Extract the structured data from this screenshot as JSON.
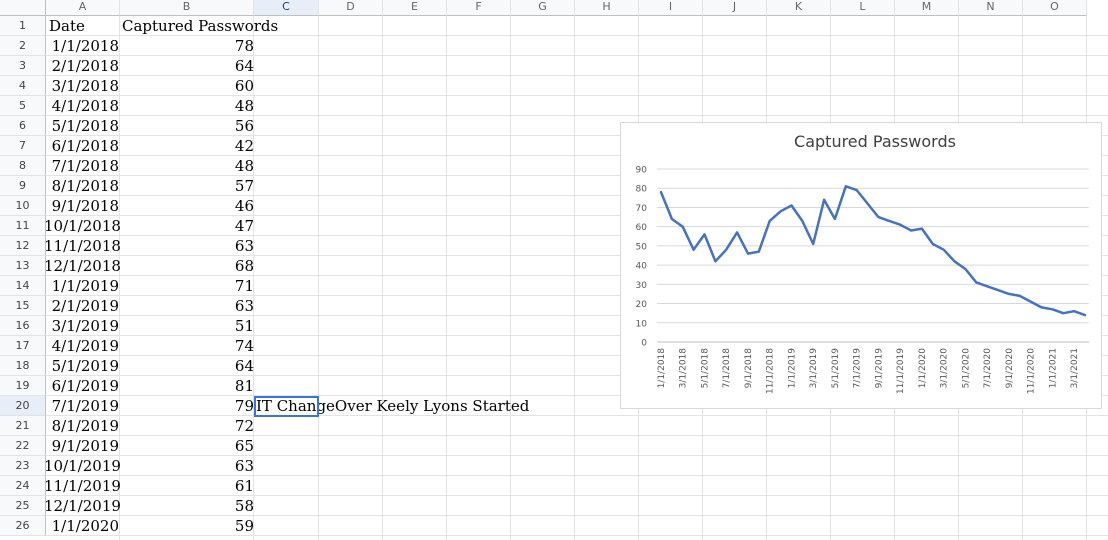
{
  "columns": [
    "A",
    "B",
    "C",
    "D",
    "E",
    "F",
    "G",
    "H",
    "I",
    "J",
    "K",
    "L",
    "M",
    "N",
    "O"
  ],
  "row_numbers": [
    "1",
    "2",
    "3",
    "4",
    "5",
    "6",
    "7",
    "8",
    "9",
    "10",
    "11",
    "12",
    "13",
    "14",
    "15",
    "16",
    "17",
    "18",
    "19",
    "20",
    "21",
    "22",
    "23",
    "24",
    "25",
    "26"
  ],
  "header": {
    "date": "Date",
    "captured": "Captured Passwords"
  },
  "rows": [
    {
      "date": "1/1/2018",
      "value": "78"
    },
    {
      "date": "2/1/2018",
      "value": "64"
    },
    {
      "date": "3/1/2018",
      "value": "60"
    },
    {
      "date": "4/1/2018",
      "value": "48"
    },
    {
      "date": "5/1/2018",
      "value": "56"
    },
    {
      "date": "6/1/2018",
      "value": "42"
    },
    {
      "date": "7/1/2018",
      "value": "48"
    },
    {
      "date": "8/1/2018",
      "value": "57"
    },
    {
      "date": "9/1/2018",
      "value": "46"
    },
    {
      "date": "10/1/2018",
      "value": "47"
    },
    {
      "date": "11/1/2018",
      "value": "63"
    },
    {
      "date": "12/1/2018",
      "value": "68"
    },
    {
      "date": "1/1/2019",
      "value": "71"
    },
    {
      "date": "2/1/2019",
      "value": "63"
    },
    {
      "date": "3/1/2019",
      "value": "51"
    },
    {
      "date": "4/1/2019",
      "value": "74"
    },
    {
      "date": "5/1/2019",
      "value": "64"
    },
    {
      "date": "6/1/2019",
      "value": "81"
    },
    {
      "date": "7/1/2019",
      "value": "79"
    },
    {
      "date": "8/1/2019",
      "value": "72"
    },
    {
      "date": "9/1/2019",
      "value": "65"
    },
    {
      "date": "10/1/2019",
      "value": "63"
    },
    {
      "date": "11/1/2019",
      "value": "61"
    },
    {
      "date": "12/1/2019",
      "value": "58"
    },
    {
      "date": "1/1/2020",
      "value": "59"
    }
  ],
  "note_cell": "IT ChangeOver Keely Lyons Started",
  "selected_cell": "C20",
  "chart_data": {
    "type": "line",
    "title": "Captured Passwords",
    "xlabel": "",
    "ylabel": "",
    "ylim": [
      0,
      90
    ],
    "yticks": [
      0,
      10,
      20,
      30,
      40,
      50,
      60,
      70,
      80,
      90
    ],
    "x": [
      "1/1/2018",
      "2/1/2018",
      "3/1/2018",
      "4/1/2018",
      "5/1/2018",
      "6/1/2018",
      "7/1/2018",
      "8/1/2018",
      "9/1/2018",
      "10/1/2018",
      "11/1/2018",
      "12/1/2018",
      "1/1/2019",
      "2/1/2019",
      "3/1/2019",
      "4/1/2019",
      "5/1/2019",
      "6/1/2019",
      "7/1/2019",
      "8/1/2019",
      "9/1/2019",
      "10/1/2019",
      "11/1/2019",
      "12/1/2019",
      "1/1/2020",
      "2/1/2020",
      "3/1/2020",
      "4/1/2020",
      "5/1/2020",
      "6/1/2020",
      "7/1/2020",
      "8/1/2020",
      "9/1/2020",
      "10/1/2020",
      "11/1/2020",
      "12/1/2020",
      "1/1/2021",
      "2/1/2021",
      "3/1/2021",
      "4/1/2021"
    ],
    "xticklabels": [
      "1/1/2018",
      "3/1/2018",
      "5/1/2018",
      "7/1/2018",
      "9/1/2018",
      "11/1/2018",
      "1/1/2019",
      "3/1/2019",
      "5/1/2019",
      "7/1/2019",
      "9/1/2019",
      "11/1/2019",
      "1/1/2020",
      "3/1/2020",
      "5/1/2020",
      "7/1/2020",
      "9/1/2020",
      "11/1/2020",
      "1/1/2021",
      "3/1/2021"
    ],
    "series": [
      {
        "values": [
          78,
          64,
          60,
          48,
          56,
          42,
          48,
          57,
          46,
          47,
          63,
          68,
          71,
          63,
          51,
          74,
          64,
          81,
          79,
          72,
          65,
          63,
          61,
          58,
          59,
          51,
          48,
          42,
          38,
          31,
          29,
          27,
          25,
          24,
          21,
          18,
          17,
          15,
          16,
          14
        ]
      }
    ],
    "grid": true,
    "line_color": "#4472c4"
  }
}
